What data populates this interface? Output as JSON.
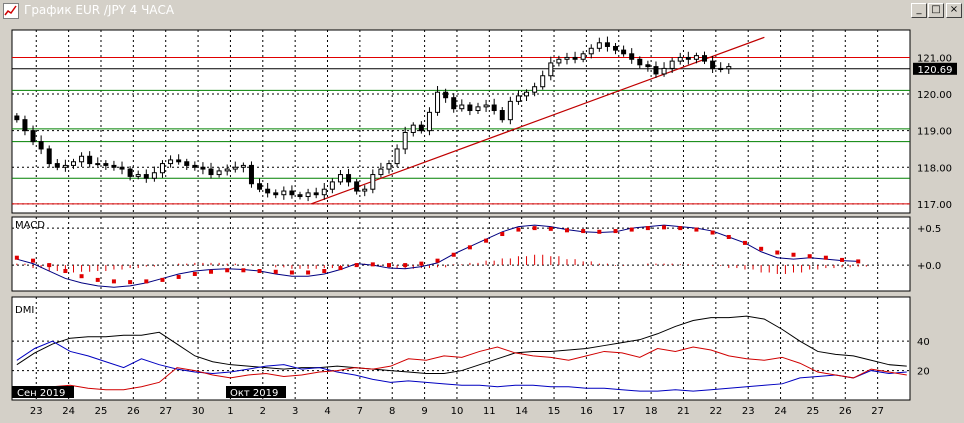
{
  "window": {
    "title": "График EUR /JPY  4 ЧАСА",
    "buttons": [
      "_",
      "□",
      "×"
    ]
  },
  "price_panel": {
    "hlines_red": [
      121.0,
      117.0
    ],
    "hlines_green": [
      120.1,
      119.05,
      118.7,
      117.7
    ],
    "last_price": "120.69",
    "last_value": 120.69,
    "trendline": {
      "from": {
        "x": 8.5,
        "y": 117.0
      },
      "to": {
        "x": 22.5,
        "y": 121.55
      }
    }
  },
  "macd_panel": {
    "label": "MACD"
  },
  "dmi_panel": {
    "label": "DMI"
  },
  "date_labels": {
    "month1": "Сен 2019",
    "month2": "Окт 2019"
  },
  "chart_data": [
    {
      "type": "candlestick",
      "title": "",
      "x_unit": "trading day",
      "x_ticks": [
        {
          "x": 0,
          "label": "23"
        },
        {
          "x": 1,
          "label": "24"
        },
        {
          "x": 2,
          "label": "25"
        },
        {
          "x": 3,
          "label": "26"
        },
        {
          "x": 4,
          "label": "27"
        },
        {
          "x": 5,
          "label": "30"
        },
        {
          "x": 6,
          "label": "1"
        },
        {
          "x": 7,
          "label": "2"
        },
        {
          "x": 8,
          "label": "3"
        },
        {
          "x": 9,
          "label": "4"
        },
        {
          "x": 10,
          "label": "7"
        },
        {
          "x": 11,
          "label": "8"
        },
        {
          "x": 12,
          "label": "9"
        },
        {
          "x": 13,
          "label": "10"
        },
        {
          "x": 14,
          "label": "11"
        },
        {
          "x": 15,
          "label": "14"
        },
        {
          "x": 16,
          "label": "15"
        },
        {
          "x": 17,
          "label": "16"
        },
        {
          "x": 18,
          "label": "17"
        },
        {
          "x": 19,
          "label": "18"
        },
        {
          "x": 20,
          "label": "21"
        },
        {
          "x": 21,
          "label": "22"
        },
        {
          "x": 22,
          "label": "23"
        },
        {
          "x": 23,
          "label": "24"
        },
        {
          "x": 24,
          "label": "25"
        },
        {
          "x": 25,
          "label": "26"
        },
        {
          "x": 26,
          "label": "27"
        }
      ],
      "y_ticks": [
        117.0,
        118.0,
        119.0,
        120.0,
        121.0
      ],
      "ylim": [
        116.75,
        121.75
      ],
      "xlim": [
        -0.75,
        27.0
      ],
      "grid": true,
      "closes": [
        119.3,
        119.0,
        118.7,
        118.5,
        118.1,
        118.0,
        118.05,
        118.15,
        118.3,
        118.1,
        118.1,
        118.05,
        118.0,
        117.95,
        117.75,
        117.8,
        117.7,
        117.85,
        118.1,
        118.2,
        118.15,
        118.05,
        118.0,
        117.95,
        117.8,
        117.9,
        117.95,
        118.0,
        118.05,
        117.55,
        117.4,
        117.3,
        117.25,
        117.35,
        117.25,
        117.2,
        117.3,
        117.25,
        117.4,
        117.6,
        117.8,
        117.6,
        117.35,
        117.4,
        117.8,
        117.95,
        118.1,
        118.5,
        118.95,
        119.15,
        119.0,
        119.5,
        120.05,
        119.9,
        119.6,
        119.7,
        119.55,
        119.65,
        119.7,
        119.55,
        119.3,
        119.8,
        119.95,
        120.05,
        120.2,
        120.5,
        120.85,
        120.95,
        121.0,
        120.95,
        121.1,
        121.25,
        121.4,
        121.3,
        121.2,
        121.1,
        120.95,
        120.8,
        120.75,
        120.55,
        120.7,
        120.9,
        121.0,
        120.95,
        121.05,
        120.9,
        120.7,
        120.69,
        120.75
      ],
      "x_start": -0.6,
      "x_step": 0.25
    },
    {
      "type": "line",
      "name": "MACD",
      "y_ticks": [
        {
          "value": 0.5,
          "label": "+0.5"
        },
        {
          "value": 0.0,
          "label": "+0.0"
        }
      ],
      "ylim": [
        -0.35,
        0.65
      ],
      "series": [
        {
          "name": "",
          "color": "#000080",
          "style": "line",
          "values": [
            0.08,
            0.02,
            -0.08,
            -0.18,
            -0.24,
            -0.28,
            -0.3,
            -0.28,
            -0.24,
            -0.18,
            -0.12,
            -0.08,
            -0.06,
            -0.05,
            -0.06,
            -0.08,
            -0.12,
            -0.15,
            -0.15,
            -0.12,
            -0.06,
            0.02,
            0.0,
            -0.04,
            -0.05,
            -0.02,
            0.03,
            0.15,
            0.25,
            0.35,
            0.45,
            0.52,
            0.54,
            0.52,
            0.48,
            0.45,
            0.44,
            0.45,
            0.5,
            0.52,
            0.54,
            0.52,
            0.5,
            0.46,
            0.38,
            0.3,
            0.18,
            0.1,
            0.08,
            0.1,
            0.08,
            0.06,
            0.05
          ],
          "x_start": -0.6,
          "x_step": 0.5
        },
        {
          "name": "",
          "color": "#e00000",
          "style": "dots",
          "values": [
            0.1,
            0.06,
            0.0,
            -0.08,
            -0.15,
            -0.2,
            -0.22,
            -0.23,
            -0.22,
            -0.2,
            -0.16,
            -0.12,
            -0.09,
            -0.07,
            -0.07,
            -0.08,
            -0.09,
            -0.1,
            -0.1,
            -0.08,
            -0.04,
            0.0,
            0.01,
            0.0,
            0.0,
            0.02,
            0.06,
            0.14,
            0.24,
            0.33,
            0.42,
            0.48,
            0.5,
            0.49,
            0.47,
            0.46,
            0.45,
            0.46,
            0.48,
            0.5,
            0.51,
            0.5,
            0.48,
            0.44,
            0.38,
            0.3,
            0.22,
            0.17,
            0.14,
            0.12,
            0.1,
            0.07,
            0.05
          ],
          "x_start": -0.6,
          "x_step": 0.5
        },
        {
          "name": "",
          "color": "#e00000",
          "style": "histogram",
          "values": [
            0.02,
            -0.04,
            -0.08,
            -0.1,
            -0.09,
            -0.08,
            -0.06,
            -0.04,
            -0.02,
            0.0,
            0.02,
            0.03,
            0.03,
            0.02,
            0.01,
            0.0,
            -0.03,
            -0.05,
            -0.05,
            -0.04,
            -0.02,
            0.02,
            -0.01,
            -0.04,
            -0.05,
            -0.04,
            -0.03,
            0.01,
            0.03,
            0.06,
            0.09,
            0.12,
            0.14,
            0.12,
            0.08,
            0.05,
            0.02,
            -0.01,
            0.0,
            0.02,
            0.02,
            0.01,
            0.0,
            -0.01,
            -0.04,
            -0.06,
            -0.1,
            -0.12,
            -0.1,
            -0.06,
            -0.04,
            -0.03,
            -0.02
          ],
          "x_start": -0.6,
          "x_step": 0.5
        }
      ]
    },
    {
      "type": "line",
      "name": "DMI",
      "y_ticks": [
        {
          "value": 40,
          "label": "40"
        },
        {
          "value": 20,
          "label": "20"
        }
      ],
      "ylim": [
        0,
        70
      ],
      "series": [
        {
          "name": "",
          "color": "#000000",
          "values": [
            24,
            32,
            38,
            42,
            43,
            43,
            44,
            44,
            46,
            38,
            30,
            26,
            24,
            23,
            22,
            21,
            22,
            22,
            23,
            22,
            21,
            20,
            19,
            18,
            18,
            20,
            24,
            28,
            32,
            33,
            33,
            34,
            35,
            37,
            39,
            41,
            45,
            50,
            54,
            56,
            56,
            57,
            55,
            48,
            40,
            33,
            31,
            30,
            27,
            24,
            23
          ],
          "x_start": -0.6,
          "x_step": 0.55
        },
        {
          "name": "",
          "color": "#0000c0",
          "values": [
            27,
            35,
            40,
            33,
            30,
            26,
            22,
            28,
            24,
            21,
            19,
            18,
            19,
            21,
            23,
            24,
            21,
            22,
            19,
            17,
            14,
            12,
            13,
            12,
            11,
            10,
            10,
            9,
            10,
            10,
            9,
            9,
            8,
            8,
            7,
            6,
            6,
            7,
            6,
            7,
            8,
            9,
            10,
            11,
            15,
            16,
            17,
            15,
            20,
            18,
            19
          ],
          "x_start": -0.6,
          "x_step": 0.55
        },
        {
          "name": "",
          "color": "#d00000",
          "values": [
            5,
            6,
            9,
            10,
            8,
            7,
            7,
            9,
            12,
            22,
            20,
            17,
            15,
            17,
            18,
            16,
            17,
            19,
            20,
            22,
            21,
            23,
            28,
            27,
            30,
            29,
            33,
            36,
            32,
            30,
            29,
            27,
            30,
            33,
            32,
            29,
            35,
            33,
            36,
            34,
            30,
            28,
            27,
            29,
            25,
            19,
            17,
            15,
            21,
            19,
            17
          ],
          "x_start": -0.6,
          "x_step": 0.55
        }
      ]
    }
  ]
}
